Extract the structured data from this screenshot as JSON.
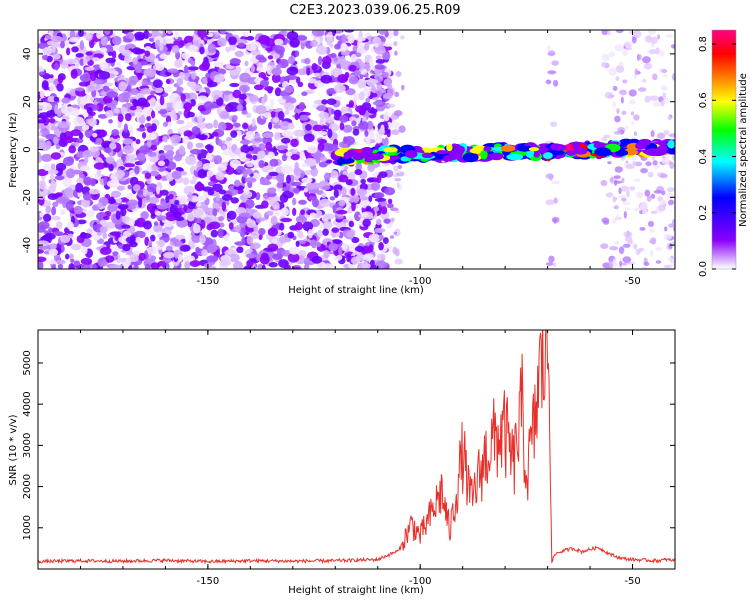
{
  "figure_title": "C2E3.2023.039.06.25.R09",
  "chart_data": [
    {
      "type": "heatmap",
      "xlabel": "Height of straight line (km)",
      "ylabel": "Frequency (Hz)",
      "xlim": [
        -190,
        -40
      ],
      "ylim": [
        -50,
        50
      ],
      "xticks": [
        -150,
        -100,
        -50
      ],
      "yticks": [
        -40,
        -20,
        0,
        20,
        40
      ],
      "colorbar": {
        "label": "Normalized spectral amplitude",
        "range": [
          0.0,
          0.85
        ],
        "ticks": [
          0.0,
          0.2,
          0.4,
          0.6,
          0.8
        ],
        "colormap": [
          "#ffffff",
          "#8a00ff",
          "#0000ff",
          "#00ffff",
          "#00ff00",
          "#ffff00",
          "#ff8000",
          "#ff0000",
          "#ff0088"
        ]
      },
      "noise_band_km": [
        -190,
        -107
      ],
      "signal_band": {
        "x_start": -120,
        "x_end": -40,
        "center_freq_start": -3,
        "center_freq_end": 1
      },
      "gaps_km": [
        [
          -104,
          -70
        ],
        [
          -68,
          -57
        ]
      ],
      "grid": false
    },
    {
      "type": "line",
      "xlabel": "Height of straight line (km)",
      "ylabel": "SNR (10 * v/v)",
      "xlim": [
        -190,
        -40
      ],
      "ylim": [
        0,
        5800
      ],
      "xticks": [
        -150,
        -100,
        -50
      ],
      "yticks": [
        1000,
        2000,
        3000,
        4000,
        5000
      ],
      "color": "#e8302a",
      "grid": false,
      "series": [
        {
          "x": [
            -190,
            -180,
            -170,
            -160,
            -150,
            -140,
            -130,
            -120,
            -110,
            -105,
            -102,
            -100,
            -97,
            -95,
            -93,
            -90,
            -88,
            -86,
            -84,
            -82,
            -80,
            -78,
            -76,
            -75,
            -73,
            -72,
            -71,
            -70,
            -69.5,
            -69,
            -68,
            -66,
            -64,
            -62,
            -60,
            -58,
            -56,
            -54,
            -52,
            -50,
            -48,
            -46,
            -44,
            -42,
            -40
          ],
          "y": [
            180,
            200,
            190,
            210,
            180,
            200,
            190,
            200,
            230,
            450,
            1100,
            800,
            1400,
            1900,
            900,
            2800,
            1600,
            2300,
            2900,
            3200,
            3300,
            2500,
            3900,
            2200,
            3500,
            4700,
            5000,
            5600,
            4200,
            200,
            380,
            450,
            500,
            420,
            480,
            520,
            400,
            300,
            250,
            230,
            220,
            210,
            200,
            230,
            200
          ]
        }
      ]
    }
  ]
}
